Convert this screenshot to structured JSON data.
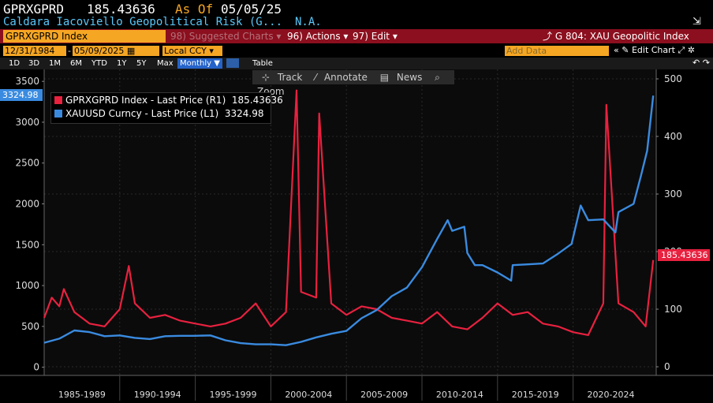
{
  "header": {
    "ticker": "GPRXGPRD",
    "last_value": "185.43636",
    "as_of_label": "As Of",
    "as_of_date": "05/05/25",
    "long_name": "Caldara Iacoviello Geopolitical Risk (G...",
    "na": "N.A."
  },
  "menubar": {
    "security": "GPRXGPRD Index",
    "suggested": "98) Suggested Charts ▾",
    "actions": "96) Actions ▾",
    "edit": "97) Edit ▾",
    "function": "G 804: XAU Geopolitic Index"
  },
  "controls": {
    "start_date": "12/31/1984",
    "end_date": "05/09/2025",
    "currency": "Local CCY",
    "add_data_placeholder": "Add Data",
    "edit_chart": "Edit Chart",
    "periods": [
      "1D",
      "3D",
      "1M",
      "6M",
      "YTD",
      "1Y",
      "5Y",
      "Max"
    ],
    "frequency": "Monthly ▼",
    "table": "Table"
  },
  "tools": {
    "track": "Track",
    "annotate": "Annotate",
    "news": "News",
    "zoom": "Zoom"
  },
  "tags": {
    "left": "3324.98",
    "right": "185.43636"
  },
  "colors": {
    "gold": "#3a8be0",
    "gpr": "#e8213f",
    "accent": "#f5a623",
    "bar": "#8b0f1e"
  },
  "chart_data": {
    "type": "line",
    "legend": [
      {
        "label": "GPRXGPRD Index - Last Price (R1)",
        "value": "185.43636"
      },
      {
        "label": "XAUUSD Curncy - Last Price (L1)",
        "value": "3324.98"
      }
    ],
    "left_axis": {
      "ticks": [
        0,
        500,
        1000,
        1500,
        2000,
        2500,
        3000,
        3500
      ],
      "range": [
        -100,
        3550
      ]
    },
    "right_axis": {
      "ticks": [
        0,
        100,
        200,
        300,
        400,
        500
      ],
      "range": [
        -15,
        500
      ]
    },
    "x_labels": [
      "1985-1989",
      "1990-1994",
      "1995-1999",
      "2000-2004",
      "2005-2009",
      "2010-2014",
      "2015-2019",
      "2020-2024"
    ],
    "x_range": [
      1985,
      2025.5
    ],
    "series": [
      {
        "name": "XAUUSD Curncy - Last Price (L1)",
        "axis": "left",
        "points": [
          [
            1985,
            300
          ],
          [
            1986,
            350
          ],
          [
            1987,
            450
          ],
          [
            1988,
            430
          ],
          [
            1989,
            380
          ],
          [
            1990,
            390
          ],
          [
            1991,
            360
          ],
          [
            1992,
            345
          ],
          [
            1993,
            380
          ],
          [
            1994,
            385
          ],
          [
            1995,
            385
          ],
          [
            1996,
            390
          ],
          [
            1997,
            330
          ],
          [
            1998,
            295
          ],
          [
            1999,
            280
          ],
          [
            2000,
            280
          ],
          [
            2001,
            270
          ],
          [
            2002,
            310
          ],
          [
            2003,
            365
          ],
          [
            2004,
            410
          ],
          [
            2005,
            445
          ],
          [
            2006,
            600
          ],
          [
            2007,
            700
          ],
          [
            2008,
            870
          ],
          [
            2009,
            975
          ],
          [
            2010,
            1225
          ],
          [
            2011,
            1570
          ],
          [
            2011.7,
            1800
          ],
          [
            2012,
            1670
          ],
          [
            2012.8,
            1720
          ],
          [
            2013,
            1400
          ],
          [
            2013.5,
            1250
          ],
          [
            2014,
            1250
          ],
          [
            2015,
            1160
          ],
          [
            2015.9,
            1060
          ],
          [
            2016,
            1250
          ],
          [
            2017,
            1260
          ],
          [
            2018,
            1270
          ],
          [
            2019,
            1390
          ],
          [
            2019.9,
            1510
          ],
          [
            2020.5,
            1980
          ],
          [
            2021,
            1800
          ],
          [
            2022,
            1810
          ],
          [
            2022.8,
            1650
          ],
          [
            2023,
            1900
          ],
          [
            2024,
            2000
          ],
          [
            2024.5,
            2350
          ],
          [
            2024.9,
            2650
          ],
          [
            2025.3,
            3324.98
          ]
        ]
      },
      {
        "name": "GPRXGPRD Index - Last Price (R1)",
        "axis": "right",
        "points": [
          [
            1985,
            85
          ],
          [
            1985.5,
            120
          ],
          [
            1986,
            105
          ],
          [
            1986.3,
            135
          ],
          [
            1987,
            95
          ],
          [
            1988,
            75
          ],
          [
            1989,
            70
          ],
          [
            1990,
            100
          ],
          [
            1990.6,
            175
          ],
          [
            1991,
            110
          ],
          [
            1992,
            85
          ],
          [
            1993,
            90
          ],
          [
            1994,
            80
          ],
          [
            1995,
            75
          ],
          [
            1996,
            70
          ],
          [
            1997,
            75
          ],
          [
            1998,
            85
          ],
          [
            1999,
            110
          ],
          [
            2000,
            70
          ],
          [
            2001,
            95
          ],
          [
            2001.7,
            480
          ],
          [
            2002,
            130
          ],
          [
            2003,
            120
          ],
          [
            2003.2,
            440
          ],
          [
            2004,
            110
          ],
          [
            2005,
            90
          ],
          [
            2006,
            105
          ],
          [
            2007,
            100
          ],
          [
            2008,
            85
          ],
          [
            2009,
            80
          ],
          [
            2010,
            75
          ],
          [
            2011,
            95
          ],
          [
            2012,
            70
          ],
          [
            2013,
            65
          ],
          [
            2014,
            85
          ],
          [
            2015,
            110
          ],
          [
            2016,
            90
          ],
          [
            2017,
            95
          ],
          [
            2018,
            75
          ],
          [
            2019,
            70
          ],
          [
            2020,
            60
          ],
          [
            2021,
            55
          ],
          [
            2022,
            110
          ],
          [
            2022.2,
            455
          ],
          [
            2023,
            110
          ],
          [
            2024,
            95
          ],
          [
            2024.8,
            70
          ],
          [
            2025.3,
            185.43636
          ]
        ]
      }
    ]
  }
}
